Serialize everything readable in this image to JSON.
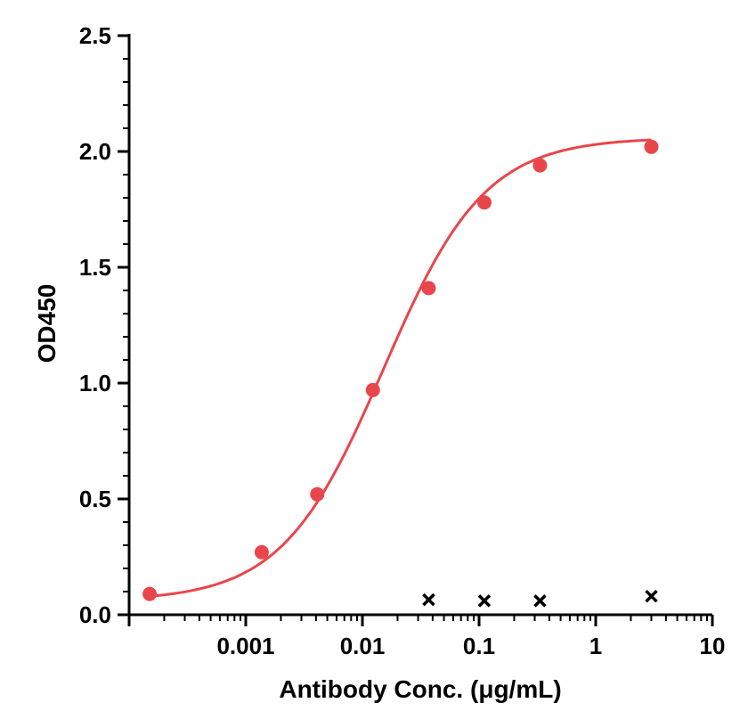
{
  "chart_data": {
    "type": "scatter",
    "xlabel": "Antibody Conc. (μg/mL)",
    "ylabel": "OD450",
    "x_scale": "log",
    "xlim": [
      0.0001,
      10
    ],
    "ylim": [
      0,
      2.5
    ],
    "x_ticks": [
      {
        "value": 0.001,
        "label": "0.001"
      },
      {
        "value": 0.01,
        "label": "0.01"
      },
      {
        "value": 0.1,
        "label": "0.1"
      },
      {
        "value": 1,
        "label": "1"
      },
      {
        "value": 10,
        "label": "10"
      }
    ],
    "y_ticks": [
      {
        "value": 0,
        "label": "0.0"
      },
      {
        "value": 0.5,
        "label": "0.5"
      },
      {
        "value": 1.0,
        "label": "1.0"
      },
      {
        "value": 1.5,
        "label": "1.5"
      },
      {
        "value": 2.0,
        "label": "2.0"
      },
      {
        "value": 2.5,
        "label": "2.5"
      }
    ],
    "grid": false,
    "legend": "none",
    "series": [
      {
        "marker": "circle",
        "color": "#e8464b",
        "fit_curve": "sigmoidal (4PL)",
        "points": [
          {
            "x": 0.00015,
            "y": 0.09
          },
          {
            "x": 0.00137,
            "y": 0.27
          },
          {
            "x": 0.0041,
            "y": 0.52
          },
          {
            "x": 0.0123,
            "y": 0.97
          },
          {
            "x": 0.037,
            "y": 1.41
          },
          {
            "x": 0.111,
            "y": 1.78
          },
          {
            "x": 0.333,
            "y": 1.94
          },
          {
            "x": 3.0,
            "y": 2.02
          }
        ]
      },
      {
        "marker": "cross",
        "color": "#000000",
        "points": [
          {
            "x": 0.037,
            "y": 0.065
          },
          {
            "x": 0.111,
            "y": 0.06
          },
          {
            "x": 0.333,
            "y": 0.06
          },
          {
            "x": 3.0,
            "y": 0.08
          }
        ]
      }
    ]
  }
}
